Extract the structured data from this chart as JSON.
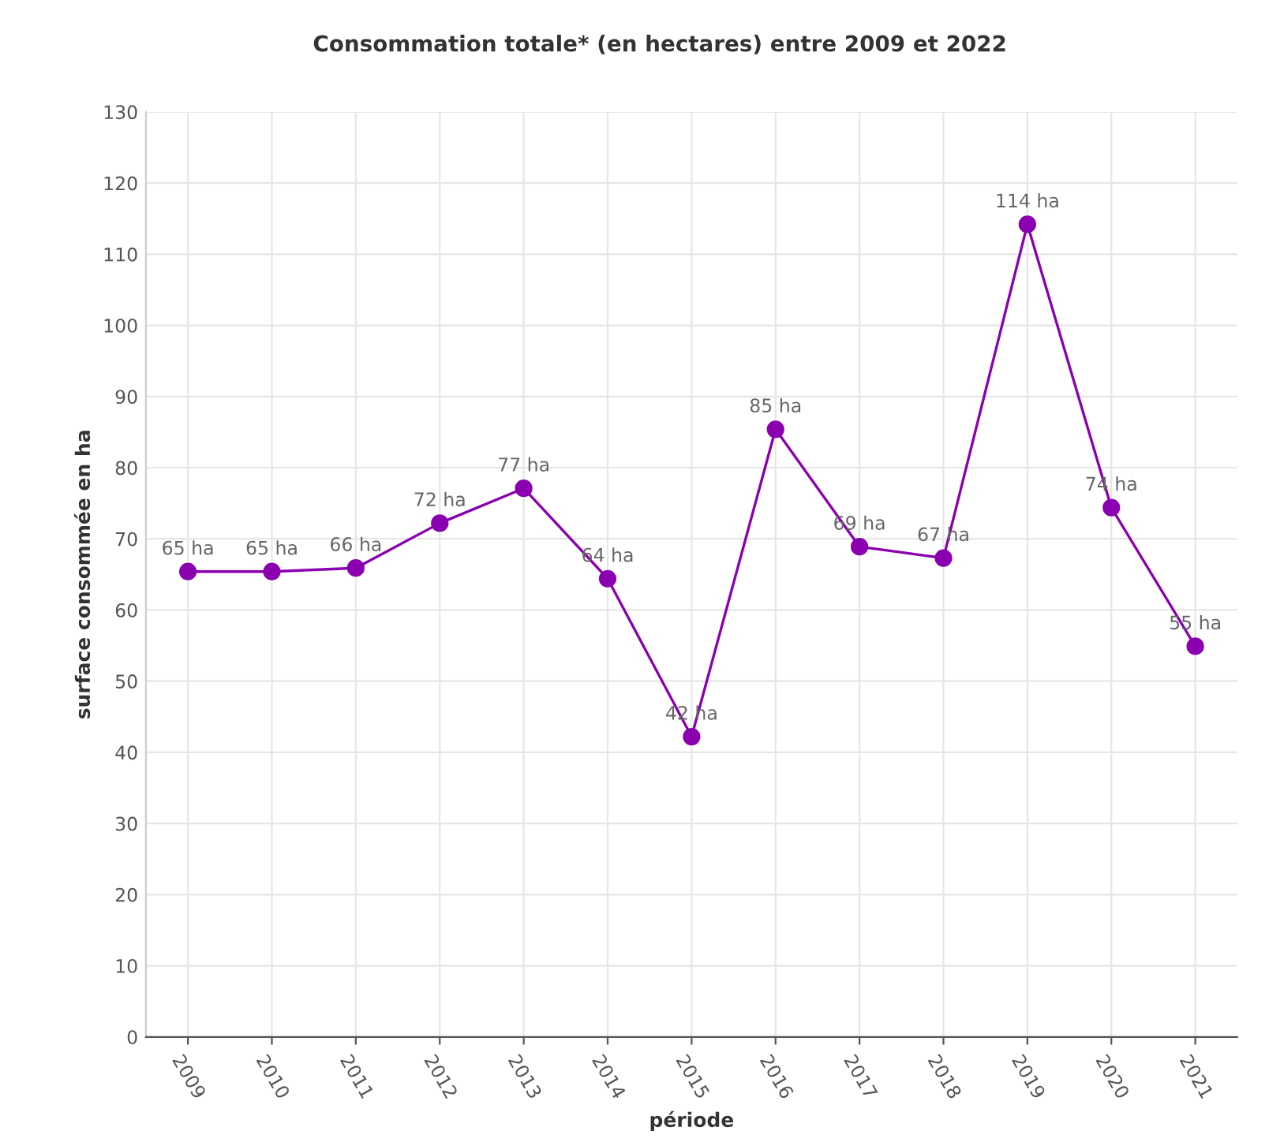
{
  "chart_data": {
    "type": "line",
    "title": "Consommation totale* (en hectares) entre 2009 et 2022",
    "xlabel": "période",
    "ylabel": "surface consommée en ha",
    "categories": [
      "2009",
      "2010",
      "2011",
      "2012",
      "2013",
      "2014",
      "2015",
      "2016",
      "2017",
      "2018",
      "2019",
      "2020",
      "2021"
    ],
    "series": [
      {
        "color": "#8a00b0",
        "values": [
          65.4,
          65.4,
          65.9,
          72.2,
          77.1,
          64.4,
          42.2,
          85.4,
          68.9,
          67.3,
          114.2,
          74.4,
          54.9
        ],
        "value_labels": [
          "65 ha",
          "65 ha",
          "66 ha",
          "72 ha",
          "77 ha",
          "64 ha",
          "42 ha",
          "85 ha",
          "69 ha",
          "67 ha",
          "114 ha",
          "74 ha",
          "55 ha"
        ]
      }
    ],
    "ylim": [
      0,
      130
    ],
    "yticks": [
      0,
      10,
      20,
      30,
      40,
      50,
      60,
      70,
      80,
      90,
      100,
      110,
      120,
      130
    ],
    "grid": true,
    "marker": "circle",
    "line_style": "solid",
    "legend": false
  }
}
